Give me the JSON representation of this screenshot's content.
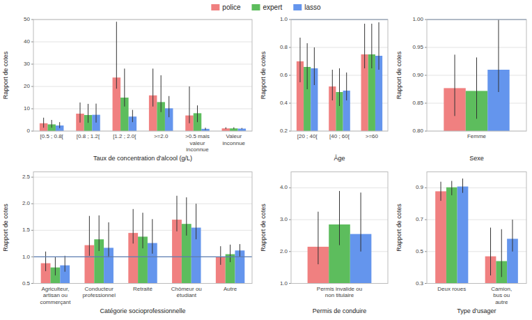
{
  "chart_data": [
    {
      "type": "bar",
      "xlabel": "Taux de concentration d'alcool (g/L)",
      "ylabel": "Rapport de cotes",
      "categories": [
        "[0.5 ; 0.8[",
        "[0.8 ; 1.2[",
        "[1.2 ; 2.0[",
        ">=2.0",
        ">0.5 mais\nvaleur\ninconnue",
        "Valeur\ninconnue"
      ],
      "series": [
        {
          "name": "police",
          "color": "#F08080",
          "values": [
            3.5,
            7.8,
            24.0,
            16.0,
            7.0,
            1.2
          ],
          "errors": [
            [
              2.0,
              2.5
            ],
            [
              4.0,
              5.0
            ],
            [
              5.0,
              25.0
            ],
            [
              5.0,
              12.0
            ],
            [
              3.5,
              13.0
            ],
            [
              0.3,
              0.5
            ]
          ]
        },
        {
          "name": "expert",
          "color": "#5DBD5D",
          "values": [
            3.0,
            7.2,
            15.0,
            13.0,
            8.0,
            1.2
          ],
          "errors": [
            [
              1.5,
              2.0
            ],
            [
              3.5,
              5.0
            ],
            [
              4.0,
              13.0
            ],
            [
              4.5,
              12.0
            ],
            [
              4.0,
              3.5
            ],
            [
              0.3,
              0.5
            ]
          ]
        },
        {
          "name": "lasso",
          "color": "#6495ED",
          "values": [
            2.5,
            7.3,
            6.5,
            10.2,
            1.0,
            1.1
          ],
          "errors": [
            [
              1.2,
              1.5
            ],
            [
              3.5,
              5.0
            ],
            [
              2.5,
              3.0
            ],
            [
              4.0,
              5.5
            ],
            [
              0.5,
              0.5
            ],
            [
              0.2,
              0.3
            ]
          ]
        }
      ],
      "ylim": [
        0,
        50
      ],
      "yticks": [
        0,
        10,
        20,
        30,
        40,
        50
      ],
      "grid": true,
      "legend": "top"
    },
    {
      "type": "bar",
      "xlabel": "Âge",
      "ylabel": "Rapport de cotes",
      "categories": [
        "[20 ; 40[",
        "[40 ; 60[",
        ">=60"
      ],
      "series": [
        {
          "name": "police",
          "color": "#F08080",
          "values": [
            0.7,
            0.52,
            0.75
          ],
          "errors": [
            [
              0.15,
              0.17
            ],
            [
              0.1,
              0.12
            ],
            [
              0.1,
              0.22
            ]
          ]
        },
        {
          "name": "expert",
          "color": "#5DBD5D",
          "values": [
            0.66,
            0.48,
            0.75
          ],
          "errors": [
            [
              0.16,
              0.17
            ],
            [
              0.1,
              0.17
            ],
            [
              0.1,
              0.22
            ]
          ]
        },
        {
          "name": "lasso",
          "color": "#6495ED",
          "values": [
            0.65,
            0.49,
            0.74
          ],
          "errors": [
            [
              0.12,
              0.15
            ],
            [
              0.07,
              0.13
            ],
            [
              0.1,
              0.24
            ]
          ]
        }
      ],
      "ylim": [
        0.2,
        1.0
      ],
      "yticks": [
        0.2,
        0.4,
        0.6,
        0.8,
        {
          "value": 1.0,
          "label": "1.0"
        }
      ],
      "grid": true,
      "reference_line": {
        "value": 1.0,
        "color": "#5B7DB1"
      }
    },
    {
      "type": "bar",
      "xlabel": "Sexe",
      "ylabel": "Rapport de cotes",
      "categories": [
        "Femme"
      ],
      "series": [
        {
          "name": "police",
          "color": "#F08080",
          "values": [
            0.877
          ],
          "errors": [
            [
              0.05,
              0.06
            ]
          ]
        },
        {
          "name": "expert",
          "color": "#5DBD5D",
          "values": [
            0.872
          ],
          "errors": [
            [
              0.05,
              0.06
            ]
          ]
        },
        {
          "name": "lasso",
          "color": "#6495ED",
          "values": [
            0.91
          ],
          "errors": [
            [
              0.04,
              0.09
            ]
          ]
        }
      ],
      "ylim": [
        0.8,
        1.0
      ],
      "yticks": [
        {
          "value": 0.8,
          "label": "0.80"
        },
        {
          "value": 0.85,
          "label": "0.85"
        },
        {
          "value": 0.9,
          "label": "0.90"
        },
        {
          "value": 0.95,
          "label": "0.95"
        },
        {
          "value": 1.0,
          "label": "1.00"
        }
      ],
      "grid": true,
      "reference_line": {
        "value": 1.0,
        "color": "#5B7DB1"
      }
    },
    {
      "type": "bar",
      "xlabel": "Catégorie socioprofessionnelle",
      "ylabel": "Rapport de cotes",
      "categories": [
        "Agriculteur,\nartisan ou\ncommerçant",
        "Conducteur\nprofessionnel",
        "Retraité",
        "Chômeur ou\nétudiant",
        "Autre"
      ],
      "series": [
        {
          "name": "police",
          "color": "#F08080",
          "values": [
            0.88,
            1.22,
            1.45,
            1.7,
            1.0
          ],
          "errors": [
            [
              0.15,
              0.22
            ],
            [
              0.2,
              0.55
            ],
            [
              0.2,
              0.45
            ],
            [
              0.22,
              0.45
            ],
            [
              0.15,
              0.2
            ]
          ]
        },
        {
          "name": "expert",
          "color": "#5DBD5D",
          "values": [
            0.8,
            1.33,
            1.38,
            1.62,
            1.05
          ],
          "errors": [
            [
              0.15,
              0.2
            ],
            [
              0.22,
              0.45
            ],
            [
              0.22,
              0.45
            ],
            [
              0.22,
              0.5
            ],
            [
              0.15,
              0.18
            ]
          ]
        },
        {
          "name": "lasso",
          "color": "#6495ED",
          "values": [
            0.84,
            1.17,
            1.26,
            1.55,
            1.12
          ],
          "errors": [
            [
              0.12,
              0.18
            ],
            [
              0.18,
              0.48
            ],
            [
              0.2,
              0.45
            ],
            [
              0.22,
              0.45
            ],
            [
              0.12,
              0.12
            ]
          ]
        }
      ],
      "ylim": [
        0.5,
        2.6
      ],
      "yticks": [
        0.5,
        {
          "value": 1.0,
          "label": "1.0"
        },
        1.5,
        {
          "value": 2.0,
          "label": "2.0"
        },
        2.5
      ],
      "grid": true,
      "reference_line": {
        "value": 1.0,
        "color": "#5B7DB1"
      }
    },
    {
      "type": "bar",
      "xlabel": "Permis de conduire",
      "ylabel": "Rapport de cotes",
      "categories": [
        "Permis invalide ou\nnon titulaire"
      ],
      "series": [
        {
          "name": "police",
          "color": "#F08080",
          "values": [
            2.15
          ],
          "errors": [
            [
              0.55,
              1.1
            ]
          ]
        },
        {
          "name": "expert",
          "color": "#5DBD5D",
          "values": [
            2.85
          ],
          "errors": [
            [
              0.65,
              1.05
            ]
          ]
        },
        {
          "name": "lasso",
          "color": "#6495ED",
          "values": [
            2.55
          ],
          "errors": [
            [
              0.55,
              1.3
            ]
          ]
        }
      ],
      "ylim": [
        1.0,
        4.5
      ],
      "yticks": [
        {
          "value": 1.0,
          "label": "1.0"
        },
        {
          "value": 2.0,
          "label": "2.0"
        },
        {
          "value": 3.0,
          "label": "3.0"
        },
        {
          "value": 4.0,
          "label": "4.0"
        }
      ],
      "grid": true,
      "reference_line": {
        "value": 1.0,
        "color": "#5B7DB1"
      }
    },
    {
      "type": "bar",
      "xlabel": "Type d'usager",
      "ylabel": "Rapport de cotes",
      "categories": [
        "Deux roues",
        "Camion,\nbus ou\nautre"
      ],
      "series": [
        {
          "name": "police",
          "color": "#F08080",
          "values": [
            0.878,
            0.47
          ],
          "errors": [
            [
              0.06,
              0.06
            ],
            [
              0.12,
              0.18
            ]
          ]
        },
        {
          "name": "expert",
          "color": "#5DBD5D",
          "values": [
            0.903,
            0.44
          ],
          "errors": [
            [
              0.05,
              0.04
            ],
            [
              0.1,
              0.2
            ]
          ]
        },
        {
          "name": "lasso",
          "color": "#6495ED",
          "values": [
            0.908,
            0.58
          ],
          "errors": [
            [
              0.04,
              0.05
            ],
            [
              0.08,
              0.12
            ]
          ]
        }
      ],
      "ylim": [
        0.3,
        1.0
      ],
      "yticks": [
        0.3,
        0.5,
        0.7,
        0.9
      ],
      "grid": true,
      "reference_line": {
        "value": 1.0,
        "color": "#5B7DB1"
      }
    }
  ]
}
